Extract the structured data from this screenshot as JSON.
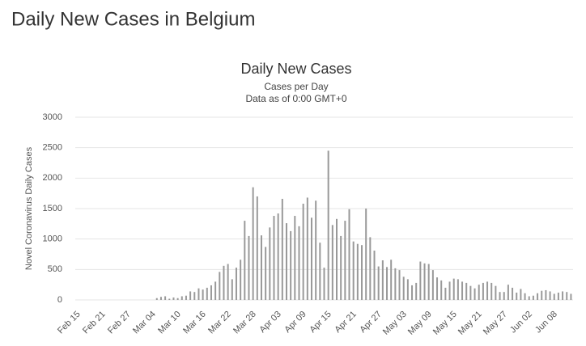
{
  "page_title": "Daily New Cases in Belgium",
  "chart_data": {
    "type": "bar",
    "title": "Daily New Cases",
    "subtitle": [
      "Cases per Day",
      "Data as of 0:00 GMT+0"
    ],
    "y_label": "Novel Coronavirus Daily Cases",
    "color": "#999999",
    "grid": true,
    "ylim": [
      0,
      3000
    ],
    "yticks": [
      0,
      500,
      1000,
      1500,
      2000,
      2500,
      3000
    ],
    "categories": [
      "Feb 15",
      null,
      null,
      null,
      null,
      null,
      "Feb 21",
      null,
      null,
      null,
      null,
      null,
      "Feb 27",
      null,
      null,
      null,
      null,
      null,
      "Mar 04",
      null,
      null,
      null,
      null,
      null,
      "Mar 10",
      null,
      null,
      null,
      null,
      null,
      "Mar 16",
      null,
      null,
      null,
      null,
      null,
      "Mar 22",
      null,
      null,
      null,
      null,
      null,
      "Mar 28",
      null,
      null,
      null,
      null,
      null,
      "Apr 03",
      null,
      null,
      null,
      null,
      null,
      "Apr 09",
      null,
      null,
      null,
      null,
      null,
      "Apr 15",
      null,
      null,
      null,
      null,
      null,
      "Apr 21",
      null,
      null,
      null,
      null,
      null,
      "Apr 27",
      null,
      null,
      null,
      null,
      null,
      "May 03",
      null,
      null,
      null,
      null,
      null,
      "May 09",
      null,
      null,
      null,
      null,
      null,
      "May 15",
      null,
      null,
      null,
      null,
      null,
      "May 21",
      null,
      null,
      null,
      null,
      null,
      "May 27",
      null,
      null,
      null,
      null,
      null,
      "Jun 02",
      null,
      null,
      null,
      null,
      null,
      "Jun 08",
      null,
      null,
      null,
      null
    ],
    "values": [
      0,
      0,
      0,
      0,
      0,
      0,
      0,
      0,
      0,
      0,
      0,
      0,
      0,
      0,
      0,
      0,
      0,
      0,
      0,
      30,
      50,
      60,
      20,
      40,
      30,
      60,
      70,
      140,
      130,
      190,
      170,
      200,
      240,
      300,
      460,
      560,
      590,
      340,
      530,
      660,
      1300,
      1050,
      1850,
      1700,
      1060,
      870,
      1190,
      1380,
      1420,
      1660,
      1260,
      1130,
      1380,
      1210,
      1580,
      1680,
      1350,
      1630,
      940,
      530,
      2450,
      1230,
      1330,
      1050,
      1300,
      1490,
      960,
      920,
      900,
      1500,
      1030,
      810,
      550,
      650,
      540,
      660,
      520,
      490,
      380,
      340,
      240,
      280,
      630,
      600,
      590,
      490,
      370,
      320,
      200,
      300,
      350,
      340,
      300,
      280,
      230,
      190,
      250,
      280,
      300,
      280,
      230,
      130,
      130,
      250,
      200,
      120,
      180,
      110,
      60,
      70,
      110,
      150,
      160,
      140,
      100,
      120,
      140,
      130,
      100
    ]
  }
}
